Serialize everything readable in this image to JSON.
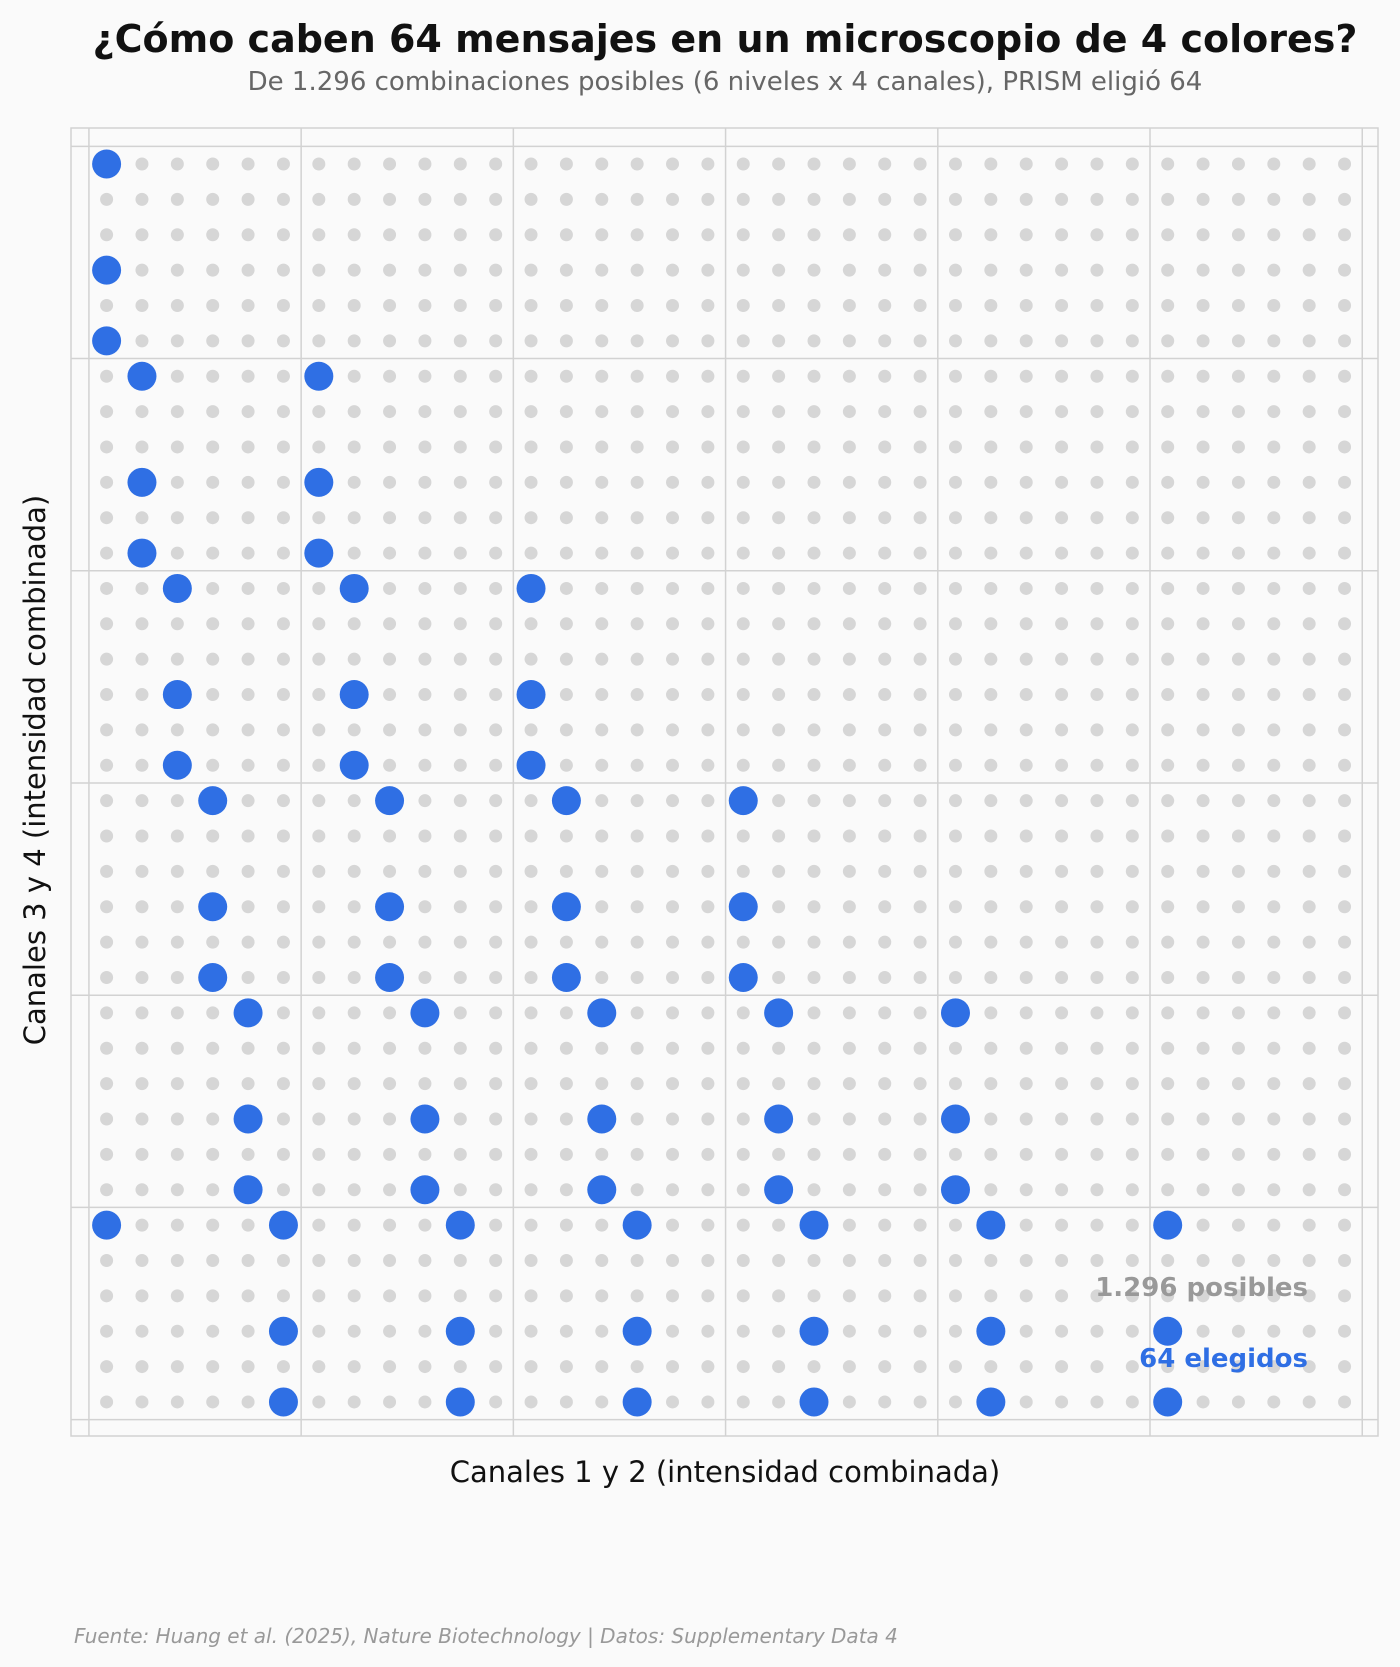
{
  "chart_data": {
    "type": "scatter",
    "title": "¿Cómo caben 64 mensajes en un microscopio de 4 colores?",
    "subtitle": "De 1.296 combinaciones posibles (6 niveles x 4 canales), PRISM eligió 64",
    "xlabel": "Canales 1 y 2 (intensidad combinada)",
    "ylabel": "Canales 3 y 4 (intensidad combinada)",
    "grid": true,
    "xlim": [
      -0.5,
      35.5
    ],
    "ylim": [
      -0.5,
      35.5
    ],
    "annotations": [
      {
        "text": "1.296 posibles",
        "color": "#999999"
      },
      {
        "text": "64 elegidos",
        "color": "#2f6fe4"
      }
    ],
    "source": "Fuente: Huang et al. (2025), Nature Biotechnology | Datos: Supplementary Data 4",
    "series": [
      {
        "role": "posibles",
        "color": "#d6d6d6",
        "grid_x": [
          0,
          35
        ],
        "grid_y": [
          0,
          35
        ],
        "count": 1296
      },
      {
        "role": "elegidos",
        "color": "#2f6fe4",
        "points": [
          [
            0,
            0
          ],
          [
            0,
            3
          ],
          [
            0,
            5
          ],
          [
            1,
            6
          ],
          [
            1,
            9
          ],
          [
            1,
            11
          ],
          [
            6,
            6
          ],
          [
            6,
            9
          ],
          [
            6,
            11
          ],
          [
            2,
            12
          ],
          [
            2,
            15
          ],
          [
            2,
            17
          ],
          [
            7,
            12
          ],
          [
            7,
            15
          ],
          [
            7,
            17
          ],
          [
            12,
            12
          ],
          [
            12,
            15
          ],
          [
            12,
            17
          ],
          [
            3,
            18
          ],
          [
            3,
            21
          ],
          [
            3,
            23
          ],
          [
            8,
            18
          ],
          [
            8,
            21
          ],
          [
            8,
            23
          ],
          [
            13,
            18
          ],
          [
            13,
            21
          ],
          [
            13,
            23
          ],
          [
            18,
            18
          ],
          [
            18,
            21
          ],
          [
            18,
            23
          ],
          [
            4,
            24
          ],
          [
            4,
            27
          ],
          [
            4,
            29
          ],
          [
            9,
            24
          ],
          [
            9,
            27
          ],
          [
            9,
            29
          ],
          [
            14,
            24
          ],
          [
            14,
            27
          ],
          [
            14,
            29
          ],
          [
            19,
            24
          ],
          [
            19,
            27
          ],
          [
            19,
            29
          ],
          [
            24,
            24
          ],
          [
            24,
            27
          ],
          [
            24,
            29
          ],
          [
            0,
            30
          ],
          [
            5,
            30
          ],
          [
            5,
            33
          ],
          [
            5,
            35
          ],
          [
            10,
            30
          ],
          [
            10,
            33
          ],
          [
            10,
            35
          ],
          [
            15,
            30
          ],
          [
            15,
            33
          ],
          [
            15,
            35
          ],
          [
            20,
            30
          ],
          [
            20,
            33
          ],
          [
            20,
            35
          ],
          [
            25,
            30
          ],
          [
            25,
            33
          ],
          [
            25,
            35
          ],
          [
            30,
            30
          ],
          [
            30,
            33
          ],
          [
            30,
            35
          ]
        ]
      }
    ]
  }
}
